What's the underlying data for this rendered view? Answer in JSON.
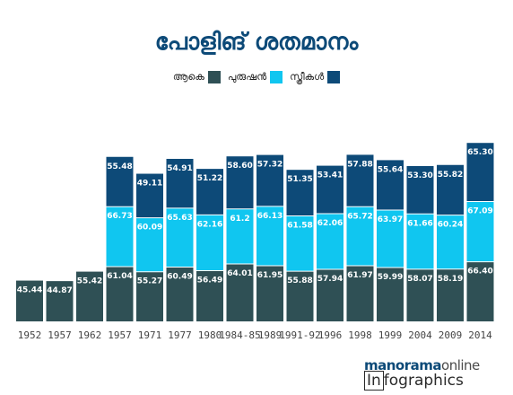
{
  "chart_data": {
    "type": "bar",
    "stacked": true,
    "title": "പോളിങ് ശതമാനം",
    "categories": [
      "1952",
      "1957",
      "1962",
      "1957",
      "1971",
      "1977",
      "1980",
      "1984-85",
      "1989",
      "1991-92",
      "1996",
      "1998",
      "1999",
      "2004",
      "2009",
      "2014"
    ],
    "series": [
      {
        "name": "ആകെ",
        "color": "#2f5055",
        "values": [
          45.44,
          44.87,
          55.42,
          61.04,
          55.27,
          60.49,
          56.49,
          64.01,
          61.95,
          55.88,
          57.94,
          61.97,
          59.99,
          58.07,
          58.19,
          66.4
        ],
        "labels": [
          "45.44",
          "44.87",
          "55.42",
          "61.04",
          "55.27",
          "60.49",
          "56.49",
          "64.01",
          "61.95",
          "55.88",
          "57.94",
          "61.97",
          "59.99",
          "58.07",
          "58.19",
          "66.40"
        ]
      },
      {
        "name": "പുരുഷൻ",
        "color": "#10c6f0",
        "values": [
          null,
          null,
          null,
          66.73,
          60.09,
          65.63,
          62.16,
          61.2,
          66.13,
          61.58,
          62.06,
          65.72,
          63.97,
          61.66,
          60.24,
          67.09
        ],
        "labels": [
          "",
          "",
          "",
          "66.73",
          "60.09",
          "65.63",
          "62.16",
          "61.2",
          "66.13",
          "61.58",
          "62.06",
          "65.72",
          "63.97",
          "61.66",
          "60.24",
          "67.09"
        ]
      },
      {
        "name": "സ്ത്രീകൾ",
        "color": "#0d4a78",
        "values": [
          null,
          null,
          null,
          55.48,
          49.11,
          54.91,
          51.22,
          58.6,
          57.32,
          51.35,
          53.41,
          57.88,
          55.64,
          53.3,
          55.82,
          65.3
        ],
        "labels": [
          "",
          "",
          "",
          "55.48",
          "49.11",
          "54.91",
          "51.22",
          "58.60",
          "57.32",
          "51.35",
          "53.41",
          "57.88",
          "55.64",
          "53.30",
          "55.82",
          "65.30"
        ]
      }
    ],
    "legend_position": "top-center",
    "grid": false
  },
  "brand": {
    "part1": "manorama",
    "part2": "online",
    "line2_a": "In",
    "line2_b": "fographics"
  }
}
